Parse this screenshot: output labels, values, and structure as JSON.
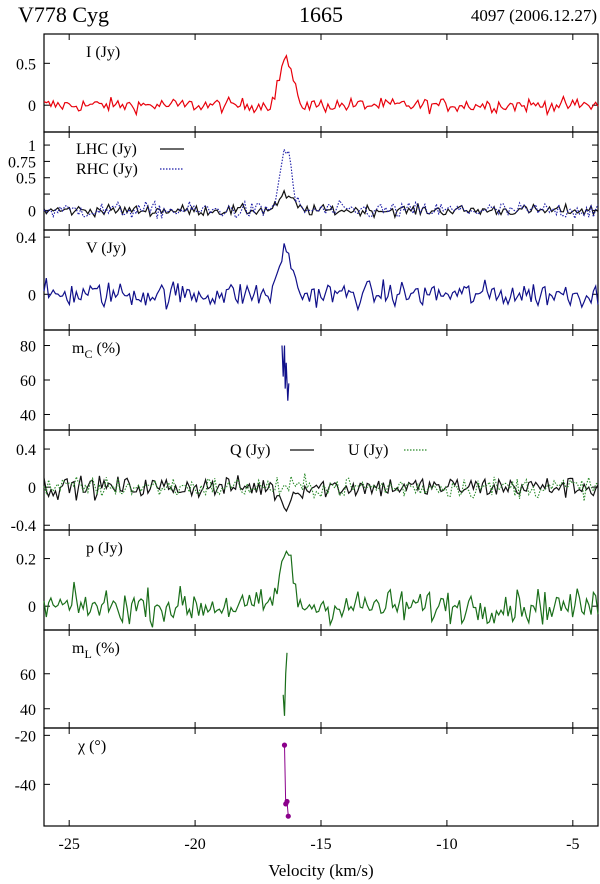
{
  "header": {
    "star": "V778 Cyg",
    "frequency": "1665",
    "epoch": "4097 (2006.12.27)"
  },
  "chart_data": {
    "type": "line",
    "shared_x": {
      "label": "Velocity (km/s)",
      "range": [
        -26,
        -4
      ],
      "ticks": [
        -25,
        -20,
        -15,
        -10,
        -5
      ],
      "tick_labels": [
        "-25",
        "-20",
        "-15",
        "-10",
        "-5"
      ]
    },
    "peak_velocity": -16.4,
    "panels": [
      {
        "id": "I",
        "label": "I (Jy)",
        "ylim": [
          -0.32,
          0.85
        ],
        "yticks": [
          0,
          0.5
        ],
        "ytick_labels": [
          "0",
          "0.5"
        ],
        "series": [
          {
            "label": "",
            "color": "#e8000b",
            "style": "solid",
            "noise": 0.06,
            "peak": 0.56,
            "peak_width": 0.25
          }
        ]
      },
      {
        "id": "LR",
        "label": "",
        "ylim": [
          -0.3,
          1.2
        ],
        "yticks": [
          0,
          0.25,
          0.5,
          0.75,
          1
        ],
        "ytick_labels": [
          "0",
          "",
          "0.5",
          "0.75",
          "1"
        ],
        "series": [
          {
            "label": "LHC (Jy)",
            "color": "#111111",
            "style": "solid",
            "noise": 0.06,
            "peak": 0.22,
            "peak_width": 0.3
          },
          {
            "label": "RHC (Jy)",
            "color": "#1a1aa6",
            "style": "dotted",
            "noise": 0.09,
            "peak": 0.95,
            "peak_width": 0.22
          }
        ]
      },
      {
        "id": "V",
        "label": "V (Jy)",
        "ylim": [
          -0.25,
          0.45
        ],
        "yticks": [
          0,
          0.4
        ],
        "ytick_labels": [
          "0",
          "0.4"
        ],
        "series": [
          {
            "label": "",
            "color": "#10108a",
            "style": "solid",
            "noise": 0.065,
            "peak": 0.34,
            "peak_width": 0.22
          }
        ]
      },
      {
        "id": "mC",
        "label": "m",
        "label_sub": "C",
        "label_after": " (%)",
        "ylim": [
          31,
          89
        ],
        "yticks": [
          40,
          60,
          80
        ],
        "ytick_labels": [
          "40",
          "60",
          "80"
        ],
        "series": [
          {
            "label": "",
            "color": "#10108a",
            "style": "solid",
            "points": [
              [
                -16.55,
                80
              ],
              [
                -16.5,
                62
              ],
              [
                -16.45,
                80
              ],
              [
                -16.42,
                55
              ],
              [
                -16.38,
                70
              ],
              [
                -16.32,
                48
              ],
              [
                -16.28,
                58
              ]
            ]
          }
        ]
      },
      {
        "id": "QU",
        "label": "",
        "ylim": [
          -0.45,
          0.6
        ],
        "yticks": [
          -0.4,
          0,
          0.4
        ],
        "ytick_labels": [
          "-0.4",
          "0",
          "0.4"
        ],
        "series": [
          {
            "label": "Q (Jy)",
            "color": "#111111",
            "style": "solid",
            "noise": 0.08,
            "peak": -0.18,
            "peak_width": 0.25
          },
          {
            "label": "U (Jy)",
            "color": "#2a8a2a",
            "style": "dotted",
            "noise": 0.08,
            "peak": 0.0,
            "peak_width": 0.25
          }
        ]
      },
      {
        "id": "p",
        "label": "p (Jy)",
        "ylim": [
          -0.1,
          0.32
        ],
        "yticks": [
          0,
          0.2
        ],
        "ytick_labels": [
          "0",
          "0.2"
        ],
        "series": [
          {
            "label": "",
            "color": "#1a6e1a",
            "style": "solid",
            "noise": 0.05,
            "peak": 0.22,
            "peak_width": 0.25
          }
        ]
      },
      {
        "id": "mL",
        "label": "m",
        "label_sub": "L",
        "label_after": " (%)",
        "ylim": [
          29,
          85
        ],
        "yticks": [
          40,
          60
        ],
        "ytick_labels": [
          "40",
          "60"
        ],
        "series": [
          {
            "label": "",
            "color": "#1a6e1a",
            "style": "solid",
            "points": [
              [
                -16.5,
                48
              ],
              [
                -16.45,
                36
              ],
              [
                -16.4,
                60
              ],
              [
                -16.35,
                72
              ]
            ]
          }
        ]
      },
      {
        "id": "chi",
        "label": "χ (°)",
        "ylim": [
          -57,
          -17
        ],
        "yticks": [
          -40,
          -20
        ],
        "ytick_labels": [
          "-40",
          "-20"
        ],
        "series": [
          {
            "label": "",
            "color": "#8b008b",
            "style": "markers",
            "points": [
              [
                -16.45,
                -24
              ],
              [
                -16.4,
                -48
              ],
              [
                -16.35,
                -47
              ],
              [
                -16.3,
                -53
              ]
            ]
          }
        ]
      }
    ]
  }
}
